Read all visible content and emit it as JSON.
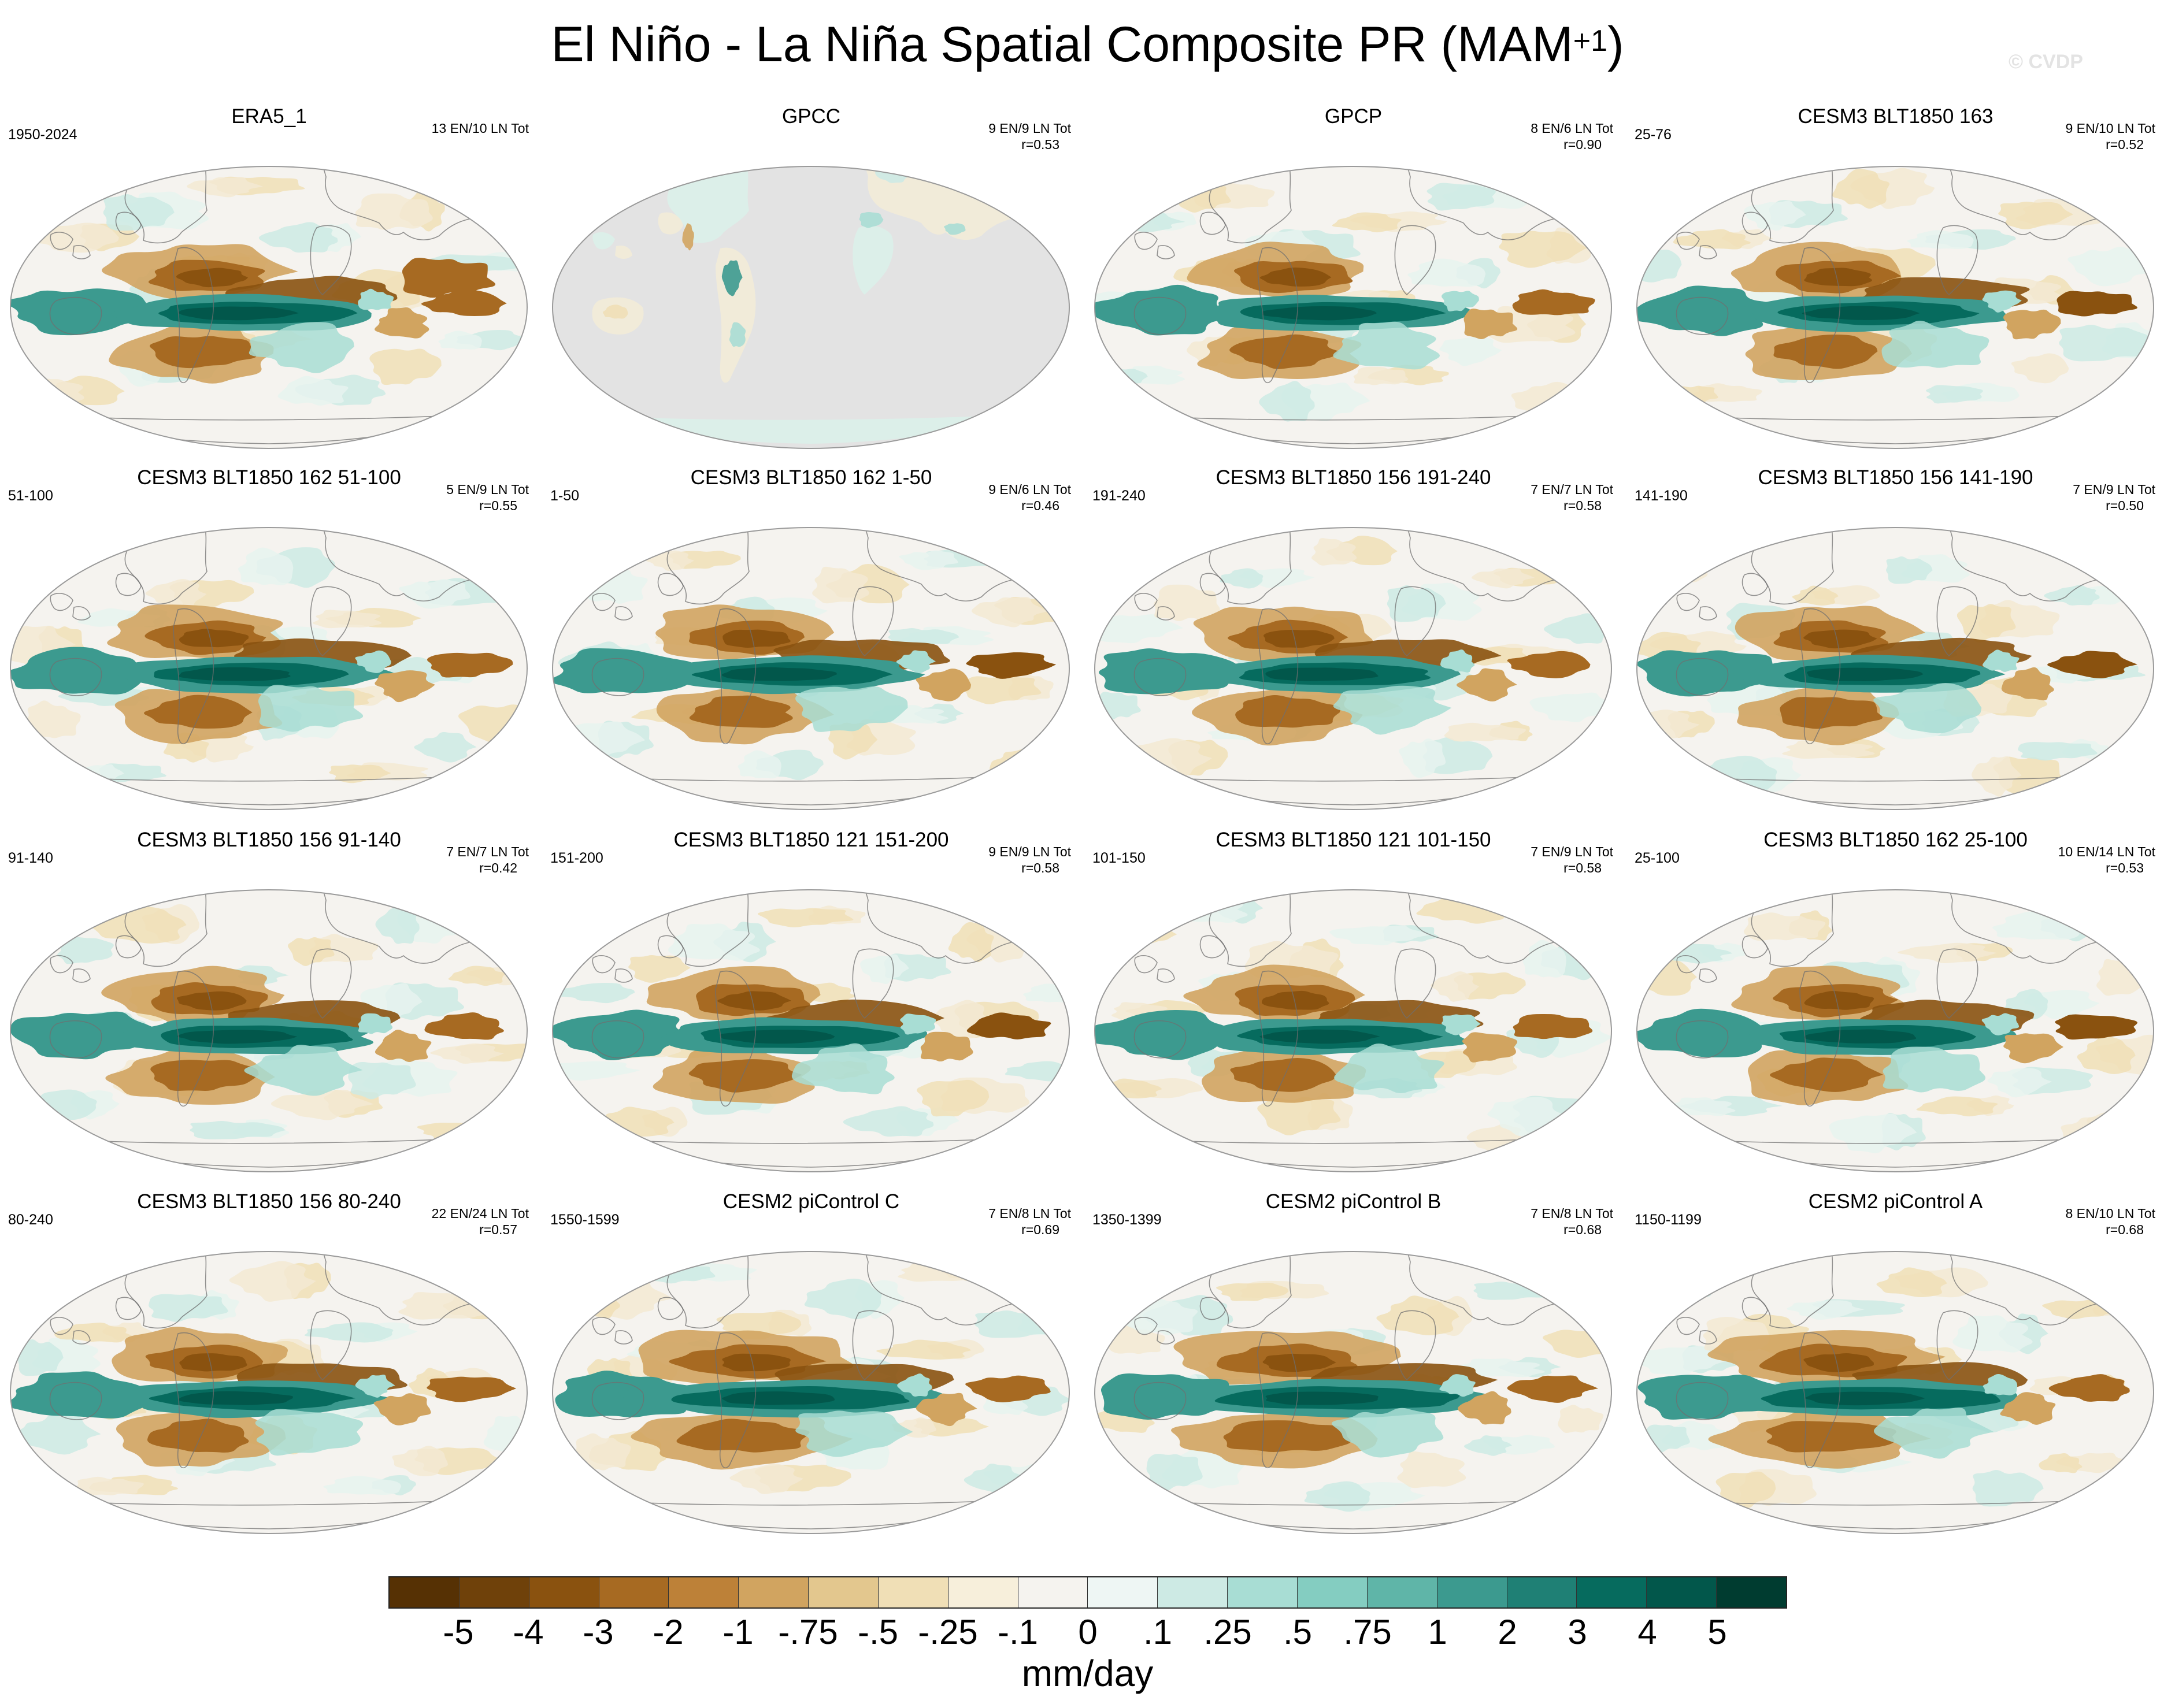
{
  "title": {
    "text": "El Niño - La Niña Spatial Composite PR (MAM",
    "superscript": "+1",
    "close": ")"
  },
  "watermark": "© CVDP",
  "colors": {
    "land_gray": "#e3e3e3",
    "map_border": "#9a9a9a",
    "coastline": "#6f6f6f"
  },
  "panels": [
    {
      "title": "ERA5_1",
      "period": "1950-2024",
      "events": "13 EN/10 LN Tot",
      "corr": "",
      "style": "reference"
    },
    {
      "title": "GPCC",
      "period": "",
      "events": "9 EN/9 LN Tot",
      "corr": "r=0.53",
      "style": "land-only"
    },
    {
      "title": "GPCP",
      "period": "",
      "events": "8 EN/6 LN Tot",
      "corr": "r=0.90",
      "style": "obs"
    },
    {
      "title": "CESM3 BLT1850 163",
      "period": "25-76",
      "events": "9 EN/10 LN Tot",
      "corr": "r=0.52",
      "style": "model"
    },
    {
      "title": "CESM3 BLT1850 162 51-100",
      "period": "51-100",
      "events": "5 EN/9 LN Tot",
      "corr": "r=0.55",
      "style": "model"
    },
    {
      "title": "CESM3 BLT1850 162 1-50",
      "period": "1-50",
      "events": "9 EN/6 LN Tot",
      "corr": "r=0.46",
      "style": "model"
    },
    {
      "title": "CESM3 BLT1850 156 191-240",
      "period": "191-240",
      "events": "7 EN/7 LN Tot",
      "corr": "r=0.58",
      "style": "model"
    },
    {
      "title": "CESM3 BLT1850 156 141-190",
      "period": "141-190",
      "events": "7 EN/9 LN Tot",
      "corr": "r=0.50",
      "style": "model"
    },
    {
      "title": "CESM3 BLT1850 156 91-140",
      "period": "91-140",
      "events": "7 EN/7 LN Tot",
      "corr": "r=0.42",
      "style": "model"
    },
    {
      "title": "CESM3 BLT1850 121 151-200",
      "period": "151-200",
      "events": "9 EN/9 LN Tot",
      "corr": "r=0.58",
      "style": "model"
    },
    {
      "title": "CESM3 BLT1850 121 101-150",
      "period": "101-150",
      "events": "7 EN/9 LN Tot",
      "corr": "r=0.58",
      "style": "model"
    },
    {
      "title": "CESM3 BLT1850 162 25-100",
      "period": "25-100",
      "events": "10 EN/14 LN Tot",
      "corr": "r=0.53",
      "style": "model"
    },
    {
      "title": "CESM3 BLT1850 156 80-240",
      "period": "80-240",
      "events": "22 EN/24 LN Tot",
      "corr": "r=0.57",
      "style": "model"
    },
    {
      "title": "CESM2 piControl C",
      "period": "1550-1599",
      "events": "7 EN/8 LN Tot",
      "corr": "r=0.69",
      "style": "strong"
    },
    {
      "title": "CESM2 piControl B",
      "period": "1350-1399",
      "events": "7 EN/8 LN Tot",
      "corr": "r=0.68",
      "style": "strong"
    },
    {
      "title": "CESM2 piControl A",
      "period": "1150-1199",
      "events": "8 EN/10 LN Tot",
      "corr": "r=0.68",
      "style": "strong"
    }
  ],
  "colorbar": {
    "units": "mm/day",
    "labels": [
      "-5",
      "-4",
      "-3",
      "-2",
      "-1",
      "-.75",
      "-.5",
      "-.25",
      "-.1",
      "0",
      ".1",
      ".25",
      ".5",
      ".75",
      "1",
      "2",
      "3",
      "4",
      "5"
    ],
    "colors": [
      "#563104",
      "#6f410a",
      "#8a520f",
      "#a76a22",
      "#bd8138",
      "#d1a460",
      "#e3c78e",
      "#f0dfb6",
      "#f7efdb",
      "#f5f3ef",
      "#eef6f4",
      "#cdeae4",
      "#a8ddd4",
      "#84cdc1",
      "#5fb5a8",
      "#3c9a8f",
      "#1f8075",
      "#066b5e",
      "#02574b",
      "#003c30"
    ]
  }
}
